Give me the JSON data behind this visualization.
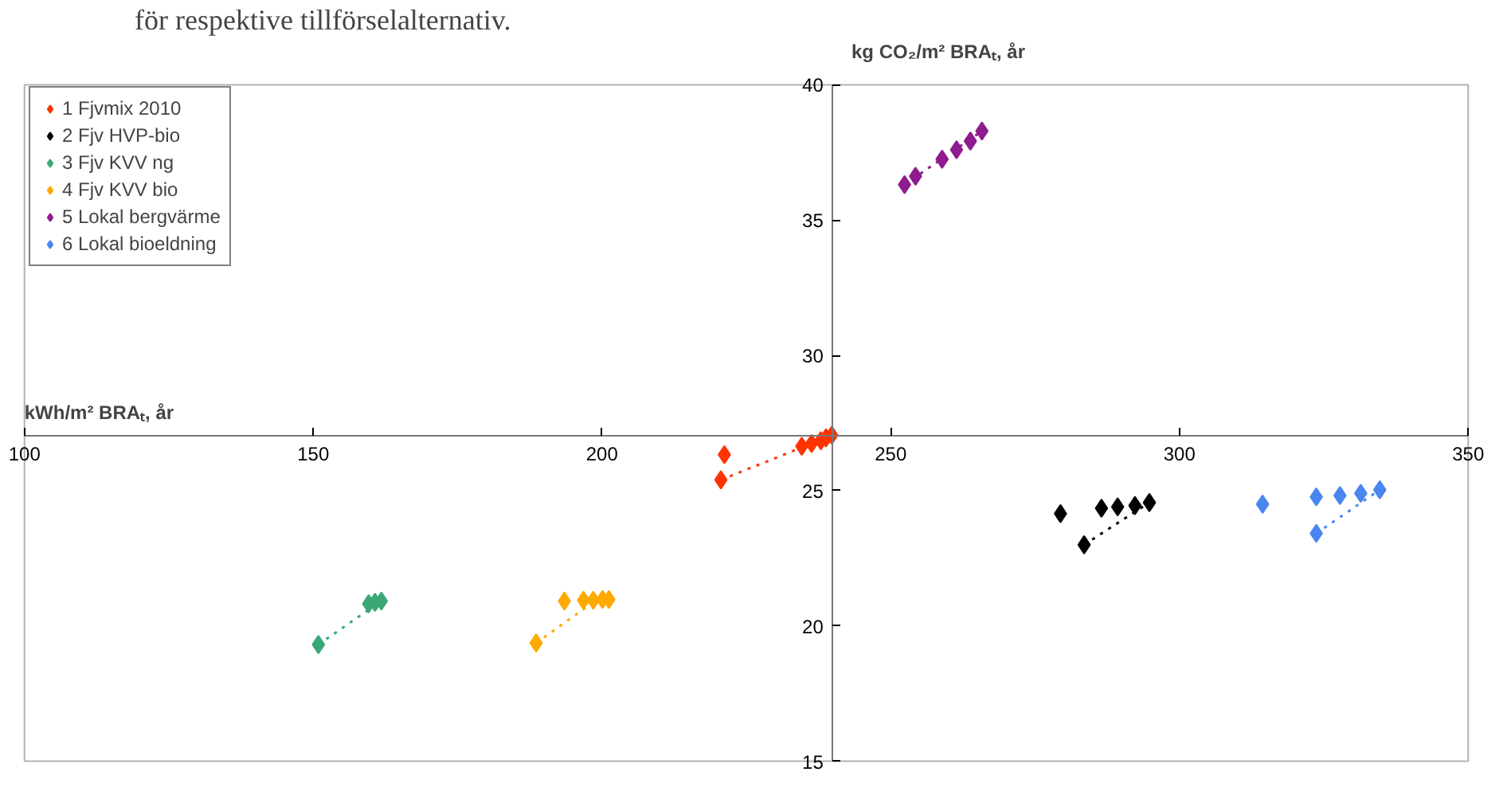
{
  "chart_data": {
    "type": "scatter",
    "title": "för respektive tillförselalternativ.",
    "xlabel": "kWh/m² BRAₜ, år",
    "ylabel": "kg CO₂/m² BRAₜ, år",
    "xlim": [
      100,
      350
    ],
    "xticks": [
      100,
      150,
      200,
      250,
      300,
      350
    ],
    "ylim": [
      15,
      40
    ],
    "yticks": [
      15,
      20,
      25,
      30,
      35,
      40
    ],
    "grid": false,
    "legend": "top left",
    "marker": "diamond",
    "series": [
      {
        "name": "1 Fjvmix 2010",
        "color": "#ff3300",
        "x": [
          221.2,
          220.6,
          234.6,
          236.3,
          237.9,
          238.8,
          239.8
        ],
        "values": [
          26.33,
          25.4,
          26.64,
          26.74,
          26.85,
          26.95,
          27.05
        ]
      },
      {
        "name": "2 Fjv HVP-bio",
        "color": "#000000",
        "x": [
          279.4,
          283.5,
          286.5,
          289.3,
          292.3,
          294.8
        ],
        "values": [
          24.15,
          23.0,
          24.35,
          24.4,
          24.45,
          24.56
        ]
      },
      {
        "name": "3 Fjv KVV ng",
        "color": "#3aa876",
        "x": [
          150.9,
          159.6,
          160.7,
          161.8
        ],
        "values": [
          19.31,
          20.82,
          20.87,
          20.92
        ]
      },
      {
        "name": "4 Fjv KVV bio",
        "color": "#ffaa00",
        "x": [
          188.6,
          193.5,
          196.8,
          198.5,
          200.1,
          201.2
        ],
        "values": [
          19.37,
          20.92,
          20.95,
          20.95,
          20.98,
          20.98
        ]
      },
      {
        "name": "5 Lokal bergvärme",
        "color": "#8e1c8e",
        "x": [
          252.4,
          254.3,
          258.9,
          261.4,
          263.8,
          265.8
        ],
        "values": [
          36.31,
          36.62,
          37.25,
          37.6,
          37.92,
          38.29
        ]
      },
      {
        "name": "6 Lokal bioeldning",
        "color": "#4a86f0",
        "x": [
          314.4,
          323.7,
          327.8,
          331.4,
          334.7,
          323.7
        ],
        "values": [
          24.5,
          24.77,
          24.82,
          24.9,
          25.03,
          23.42
        ]
      },
      {
        "type": "line",
        "marker": "none",
        "line_style": "dotted",
        "color": "#ff3300",
        "x": [
          220.6,
          240.5
        ],
        "values": [
          25.4,
          27.1
        ]
      },
      {
        "type": "line",
        "marker": "none",
        "line_style": "dotted",
        "color": "#000000",
        "x": [
          283.5,
          294.8
        ],
        "values": [
          23.0,
          24.56
        ]
      },
      {
        "type": "line",
        "marker": "none",
        "line_style": "dotted",
        "color": "#3aa876",
        "x": [
          150.9,
          161.8
        ],
        "values": [
          19.31,
          20.92
        ]
      },
      {
        "type": "line",
        "marker": "none",
        "line_style": "dotted",
        "color": "#ffaa00",
        "x": [
          188.6,
          198.5
        ],
        "values": [
          19.37,
          20.88
        ]
      },
      {
        "type": "line",
        "marker": "none",
        "line_style": "dotted",
        "color": "#8e1c8e",
        "x": [
          252.4,
          265.8
        ],
        "values": [
          36.31,
          38.29
        ]
      },
      {
        "type": "line",
        "marker": "none",
        "line_style": "dotted",
        "color": "#4a86f0",
        "x": [
          323.7,
          334.7
        ],
        "values": [
          23.42,
          25.03
        ]
      }
    ]
  }
}
